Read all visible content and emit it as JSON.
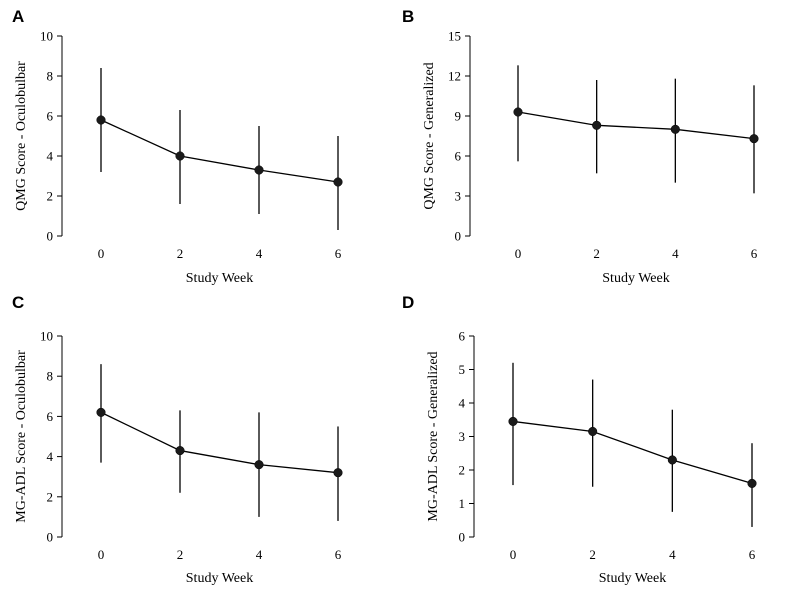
{
  "chart_data": [
    {
      "panel": "A",
      "type": "line",
      "xlabel": "Study Week",
      "ylabel": "QMG Score - Oculobulbar",
      "x": [
        0,
        2,
        4,
        6
      ],
      "xticks": [
        "0",
        "2",
        "4",
        "6"
      ],
      "ylim": [
        0,
        10
      ],
      "yticks": [
        "0",
        "2",
        "4",
        "6",
        "8",
        "10"
      ],
      "series": [
        {
          "name": "mean",
          "values": [
            5.8,
            4.0,
            3.3,
            2.7
          ],
          "err_low": [
            3.2,
            1.6,
            1.1,
            0.3
          ],
          "err_high": [
            8.4,
            6.3,
            5.5,
            5.0
          ]
        }
      ]
    },
    {
      "panel": "B",
      "type": "line",
      "xlabel": "Study Week",
      "ylabel": "QMG Score - Generalized",
      "x": [
        0,
        2,
        4,
        6
      ],
      "xticks": [
        "0",
        "2",
        "4",
        "6"
      ],
      "ylim": [
        0,
        15
      ],
      "yticks": [
        "0",
        "3",
        "6",
        "9",
        "12",
        "15"
      ],
      "series": [
        {
          "name": "mean",
          "values": [
            9.3,
            8.3,
            8.0,
            7.3
          ],
          "err_low": [
            5.6,
            4.7,
            4.0,
            3.2
          ],
          "err_high": [
            12.8,
            11.7,
            11.8,
            11.3
          ]
        }
      ]
    },
    {
      "panel": "C",
      "type": "line",
      "xlabel": "Study Week",
      "ylabel": "MG-ADL Score - Oculobulbar",
      "x": [
        0,
        2,
        4,
        6
      ],
      "xticks": [
        "0",
        "2",
        "4",
        "6"
      ],
      "ylim": [
        0,
        10
      ],
      "yticks": [
        "0",
        "2",
        "4",
        "6",
        "8",
        "10"
      ],
      "series": [
        {
          "name": "mean",
          "values": [
            6.2,
            4.3,
            3.6,
            3.2
          ],
          "err_low": [
            3.7,
            2.2,
            1.0,
            0.8
          ],
          "err_high": [
            8.6,
            6.3,
            6.2,
            5.5
          ]
        }
      ]
    },
    {
      "panel": "D",
      "type": "line",
      "xlabel": "Study Week",
      "ylabel": "MG-ADL Score - Generalized",
      "x": [
        0,
        2,
        4,
        6
      ],
      "xticks": [
        "0",
        "2",
        "4",
        "6"
      ],
      "ylim": [
        0,
        6
      ],
      "yticks": [
        "0",
        "1",
        "2",
        "3",
        "4",
        "5",
        "6"
      ],
      "series": [
        {
          "name": "mean",
          "values": [
            3.45,
            3.15,
            2.3,
            1.6
          ],
          "err_low": [
            1.55,
            1.5,
            0.75,
            0.3
          ],
          "err_high": [
            5.2,
            4.7,
            3.8,
            2.8
          ]
        }
      ]
    }
  ]
}
